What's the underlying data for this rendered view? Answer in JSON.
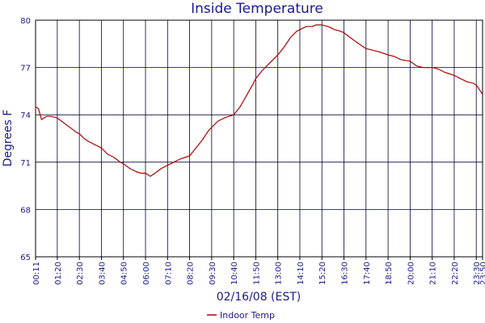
{
  "chart_data": {
    "type": "line",
    "title": "Inside Temperature",
    "xlabel": "02/16/08 (EST)",
    "ylabel": "Degrees F",
    "ylim": [
      65,
      80
    ],
    "y_ticks": [
      65,
      68,
      71,
      74,
      77,
      80
    ],
    "x_tick_labels": [
      "00:11",
      "01:20",
      "02:30",
      "03:40",
      "04:50",
      "06:00",
      "07:10",
      "08:20",
      "09:30",
      "10:40",
      "11:50",
      "13:00",
      "14:10",
      "15:20",
      "16:30",
      "17:40",
      "18:50",
      "20:00",
      "21:10",
      "22:20",
      "23:30",
      "23:50"
    ],
    "grid": true,
    "legend_position": "bottom-center",
    "series": [
      {
        "name": "Indoor Temp",
        "color": "#b00000",
        "points": [
          [
            "00:11",
            74.5
          ],
          [
            "00:20",
            74.4
          ],
          [
            "00:30",
            73.7
          ],
          [
            "00:45",
            73.9
          ],
          [
            "01:00",
            73.9
          ],
          [
            "01:20",
            73.8
          ],
          [
            "01:40",
            73.5
          ],
          [
            "02:00",
            73.2
          ],
          [
            "02:20",
            72.9
          ],
          [
            "02:30",
            72.8
          ],
          [
            "02:45",
            72.5
          ],
          [
            "03:00",
            72.3
          ],
          [
            "03:20",
            72.1
          ],
          [
            "03:40",
            71.9
          ],
          [
            "04:00",
            71.5
          ],
          [
            "04:20",
            71.3
          ],
          [
            "04:40",
            71.0
          ],
          [
            "04:50",
            70.9
          ],
          [
            "05:10",
            70.6
          ],
          [
            "05:30",
            70.4
          ],
          [
            "05:45",
            70.3
          ],
          [
            "06:00",
            70.3
          ],
          [
            "06:15",
            70.1
          ],
          [
            "06:30",
            70.3
          ],
          [
            "06:50",
            70.6
          ],
          [
            "07:10",
            70.8
          ],
          [
            "07:30",
            71.0
          ],
          [
            "07:50",
            71.2
          ],
          [
            "08:20",
            71.4
          ],
          [
            "08:40",
            71.9
          ],
          [
            "09:00",
            72.4
          ],
          [
            "09:20",
            73.0
          ],
          [
            "09:30",
            73.2
          ],
          [
            "09:50",
            73.6
          ],
          [
            "10:10",
            73.8
          ],
          [
            "10:40",
            74.0
          ],
          [
            "11:00",
            74.5
          ],
          [
            "11:20",
            75.2
          ],
          [
            "11:40",
            75.9
          ],
          [
            "11:50",
            76.3
          ],
          [
            "12:10",
            76.8
          ],
          [
            "12:30",
            77.2
          ],
          [
            "12:50",
            77.6
          ],
          [
            "13:00",
            77.8
          ],
          [
            "13:20",
            78.3
          ],
          [
            "13:40",
            78.9
          ],
          [
            "14:00",
            79.3
          ],
          [
            "14:10",
            79.4
          ],
          [
            "14:30",
            79.6
          ],
          [
            "14:50",
            79.6
          ],
          [
            "15:00",
            79.7
          ],
          [
            "15:20",
            79.7
          ],
          [
            "15:40",
            79.6
          ],
          [
            "16:00",
            79.4
          ],
          [
            "16:20",
            79.3
          ],
          [
            "16:30",
            79.2
          ],
          [
            "16:50",
            78.9
          ],
          [
            "17:10",
            78.6
          ],
          [
            "17:40",
            78.2
          ],
          [
            "18:00",
            78.1
          ],
          [
            "18:20",
            78.0
          ],
          [
            "18:50",
            77.8
          ],
          [
            "19:10",
            77.7
          ],
          [
            "19:30",
            77.5
          ],
          [
            "20:00",
            77.4
          ],
          [
            "20:20",
            77.1
          ],
          [
            "20:40",
            77.0
          ],
          [
            "21:10",
            77.0
          ],
          [
            "21:30",
            76.9
          ],
          [
            "21:50",
            76.7
          ],
          [
            "22:20",
            76.5
          ],
          [
            "22:40",
            76.3
          ],
          [
            "23:00",
            76.1
          ],
          [
            "23:20",
            76.0
          ],
          [
            "23:30",
            75.9
          ],
          [
            "23:40",
            75.6
          ],
          [
            "23:50",
            75.3
          ]
        ]
      }
    ]
  }
}
